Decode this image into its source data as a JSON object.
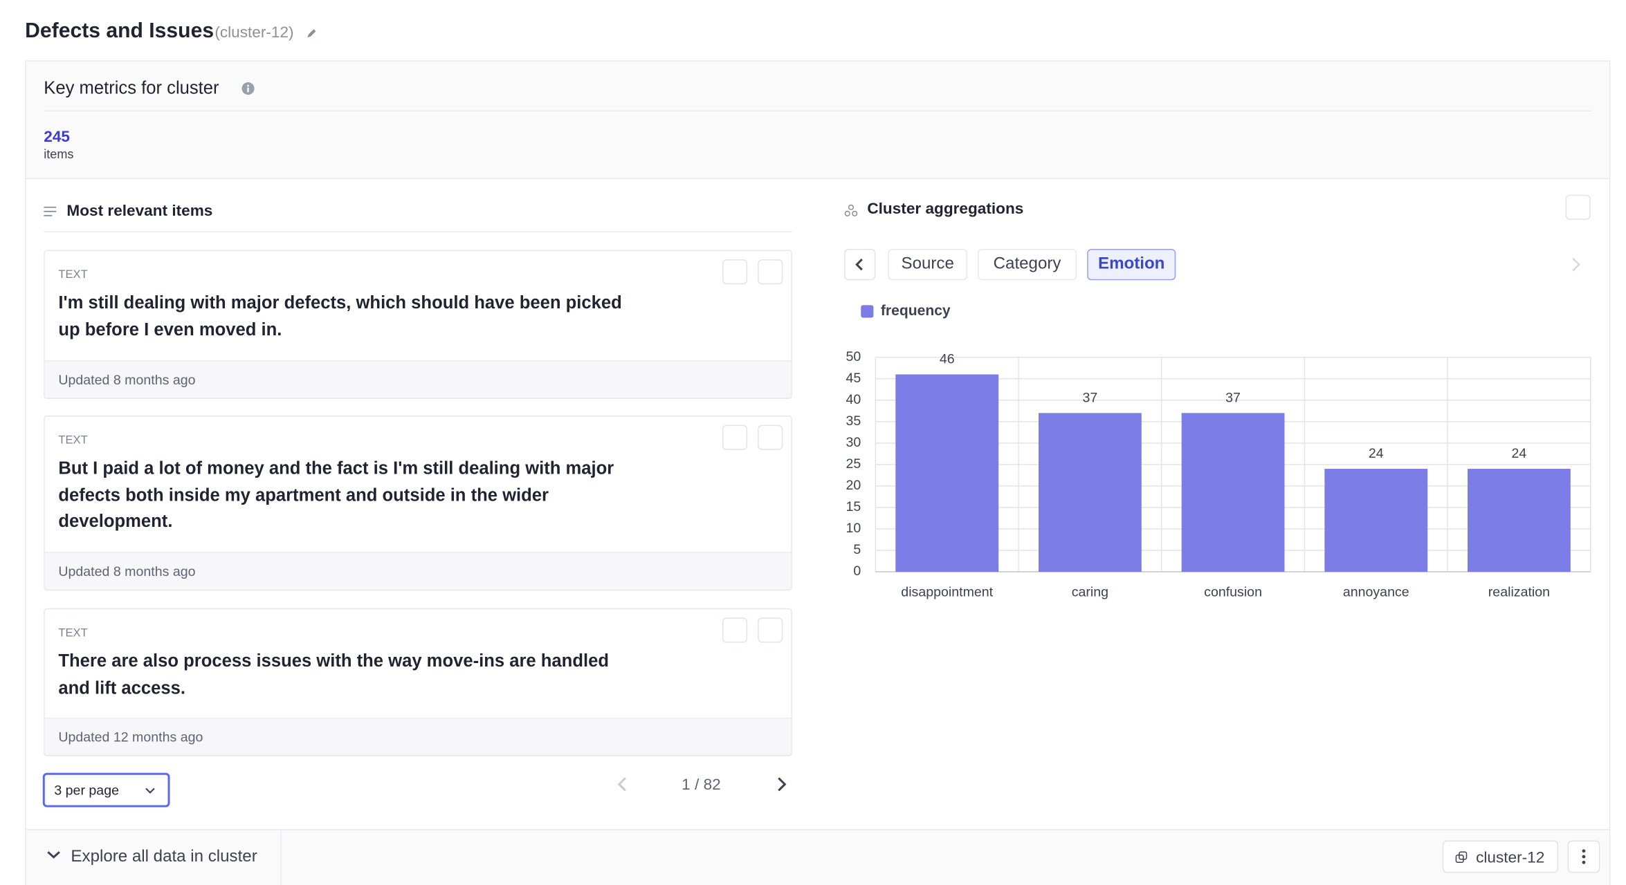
{
  "header": {
    "title": "Defects and Issues",
    "cluster_id": "(cluster-12)"
  },
  "metrics": {
    "title": "Key metrics for cluster",
    "count": 245,
    "count_label": "items"
  },
  "items_panel": {
    "title": "Most relevant items",
    "items": [
      {
        "type_label": "TEXT",
        "text": "I'm still dealing with major defects, which should have been picked up before I even moved in.",
        "updated": "Updated 8 months ago"
      },
      {
        "type_label": "TEXT",
        "text": "But I paid a lot of money and the fact is I'm still dealing with major defects both inside my apartment and outside in the wider development.",
        "updated": "Updated 8 months ago"
      },
      {
        "type_label": "TEXT",
        "text": "There are also process issues with the way move-ins are handled and lift access.",
        "updated": "Updated 12 months ago"
      }
    ],
    "per_page": "3 per page",
    "pagination": "1 / 82"
  },
  "aggregations": {
    "title": "Cluster aggregations",
    "tabs": [
      "Source",
      "Category",
      "Emotion"
    ],
    "active_tab": 2
  },
  "chart_data": {
    "type": "bar",
    "categories": [
      "disappointment",
      "caring",
      "confusion",
      "annoyance",
      "realization"
    ],
    "series": [
      {
        "name": "frequency",
        "color": "#7b7ce6",
        "values": [
          46,
          37,
          37,
          24,
          24
        ]
      }
    ],
    "ylim": [
      0,
      50
    ],
    "yticks": [
      0,
      5,
      10,
      15,
      20,
      25,
      30,
      35,
      40,
      45,
      50
    ],
    "grid": true,
    "value_labels_shown": true
  },
  "footer": {
    "explore": "Explore all data in cluster",
    "cluster_button": "cluster-12"
  }
}
